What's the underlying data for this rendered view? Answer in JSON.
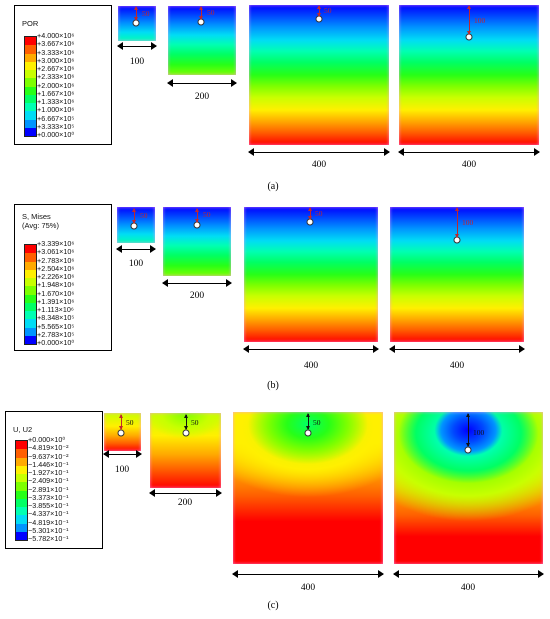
{
  "colors": {
    "levels12": [
      "#0000ff",
      "#0049ff",
      "#0094ff",
      "#00dcf5",
      "#00ffb2",
      "#00ff64",
      "#27ff17",
      "#7dff00",
      "#c8ff00",
      "#fff000",
      "#ffaa00",
      "#ff5f00",
      "#ff0000"
    ],
    "depth_arrow": "#c0272d"
  },
  "figure_a": {
    "caption": "(a)",
    "legend_title": "POR",
    "legend_ticks": [
      "+4.000×10⁶",
      "+3.667×10⁶",
      "+3.333×10⁶",
      "+3.000×10⁶",
      "+2.667×10⁶",
      "+2.333×10⁶",
      "+2.000×10⁶",
      "+1.667×10⁶",
      "+1.333×10⁶",
      "+1.000×10⁶",
      "+6.667×10⁵",
      "+3.333×10⁵",
      "+0.000×10⁰"
    ],
    "widths": [
      "100",
      "200",
      "400",
      "400"
    ],
    "depth_labels": [
      "50",
      "50",
      "50",
      "100"
    ]
  },
  "figure_b": {
    "caption": "(b)",
    "legend_title": "S, Mises\n(Avg: 75%)",
    "legend_ticks": [
      "+3.339×10⁶",
      "+3.061×10⁶",
      "+2.783×10⁶",
      "+2.504×10⁶",
      "+2.226×10⁶",
      "+1.948×10⁶",
      "+1.670×10⁶",
      "+1.391×10⁶",
      "+1.113×10⁶",
      "+8.348×10⁵",
      "+5.565×10⁵",
      "+2.783×10⁵",
      "+0.000×10⁰"
    ],
    "widths": [
      "100",
      "200",
      "400",
      "400"
    ],
    "depth_labels": [
      "50",
      "50",
      "50",
      "100"
    ]
  },
  "figure_c": {
    "caption": "(c)",
    "legend_title": "U, U2",
    "legend_ticks": [
      "+0.000×10⁰",
      "−4.819×10⁻²",
      "−9.637×10⁻²",
      "−1.446×10⁻¹",
      "−1.927×10⁻¹",
      "−2.409×10⁻¹",
      "−2.891×10⁻¹",
      "−3.373×10⁻¹",
      "−3.855×10⁻¹",
      "−4.337×10⁻¹",
      "−4.819×10⁻¹",
      "−5.301×10⁻¹",
      "−5.782×10⁻¹"
    ],
    "widths": [
      "100",
      "200",
      "400",
      "400"
    ],
    "depth_labels": [
      "50",
      "50",
      "50",
      "100"
    ]
  }
}
